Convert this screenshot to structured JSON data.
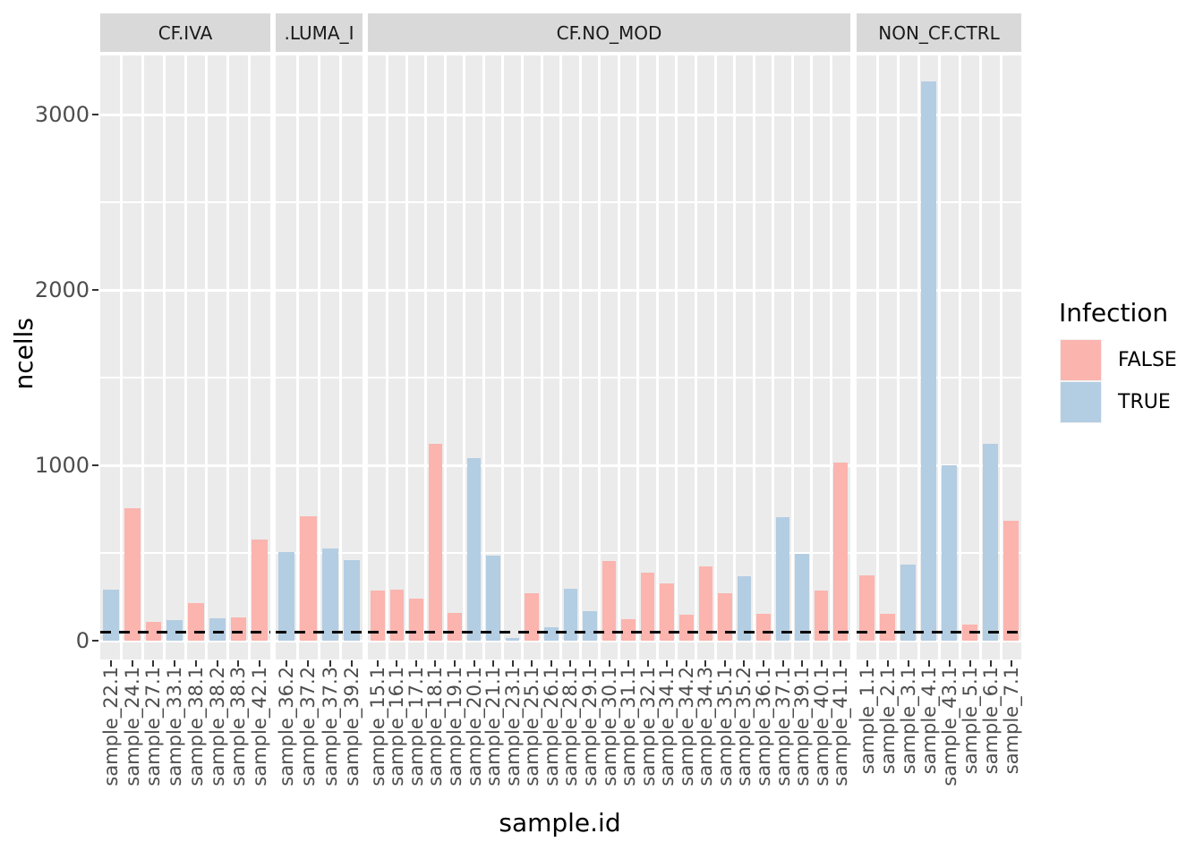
{
  "chart_data": {
    "type": "bar",
    "ylabel": "ncells",
    "xlabel": "sample.id",
    "y_ticks": [
      0,
      1000,
      2000,
      3000
    ],
    "y_minor_gridlines": [
      500,
      1500,
      2500
    ],
    "ylim": [
      -110,
      3340
    ],
    "threshold_line": 50,
    "grid": "on",
    "legend": {
      "title": "Infection",
      "position": "right",
      "entries": [
        {
          "label": "FALSE",
          "color": "#FBB4AE"
        },
        {
          "label": "TRUE",
          "color": "#B3CDE3"
        }
      ]
    },
    "colors": {
      "panel_bg": "#EBEBEB",
      "strip_bg": "#D9D9D9",
      "gridline": "#FFFFFF",
      "tick_text": "#4D4D4D",
      "threshold": "#000000"
    },
    "facets": [
      {
        "label": "CF.IVA",
        "bars": [
          {
            "id": "sample_22.1",
            "infection": "TRUE",
            "ncells": 290
          },
          {
            "id": "sample_24.1",
            "infection": "FALSE",
            "ncells": 755
          },
          {
            "id": "sample_27.1",
            "infection": "FALSE",
            "ncells": 105
          },
          {
            "id": "sample_33.1",
            "infection": "TRUE",
            "ncells": 115
          },
          {
            "id": "sample_38.1",
            "infection": "FALSE",
            "ncells": 215
          },
          {
            "id": "sample_38.2",
            "infection": "TRUE",
            "ncells": 130
          },
          {
            "id": "sample_38.3",
            "infection": "FALSE",
            "ncells": 135
          },
          {
            "id": "sample_42.1",
            "infection": "FALSE",
            "ncells": 575
          }
        ]
      },
      {
        "label": ".LUMA_I",
        "bars": [
          {
            "id": "sample_36.2",
            "infection": "TRUE",
            "ncells": 505
          },
          {
            "id": "sample_37.2",
            "infection": "FALSE",
            "ncells": 710
          },
          {
            "id": "sample_37.3",
            "infection": "TRUE",
            "ncells": 525
          },
          {
            "id": "sample_39.2",
            "infection": "TRUE",
            "ncells": 460
          }
        ]
      },
      {
        "label": "CF.NO_MOD",
        "bars": [
          {
            "id": "sample_15.1",
            "infection": "FALSE",
            "ncells": 285
          },
          {
            "id": "sample_16.1",
            "infection": "FALSE",
            "ncells": 290
          },
          {
            "id": "sample_17.1",
            "infection": "FALSE",
            "ncells": 240
          },
          {
            "id": "sample_18.1",
            "infection": "FALSE",
            "ncells": 1120
          },
          {
            "id": "sample_19.1",
            "infection": "FALSE",
            "ncells": 160
          },
          {
            "id": "sample_20.1",
            "infection": "TRUE",
            "ncells": 1040
          },
          {
            "id": "sample_21.1",
            "infection": "TRUE",
            "ncells": 485
          },
          {
            "id": "sample_23.1",
            "infection": "TRUE",
            "ncells": 15
          },
          {
            "id": "sample_25.1",
            "infection": "FALSE",
            "ncells": 270
          },
          {
            "id": "sample_26.1",
            "infection": "TRUE",
            "ncells": 75
          },
          {
            "id": "sample_28.1",
            "infection": "TRUE",
            "ncells": 295
          },
          {
            "id": "sample_29.1",
            "infection": "TRUE",
            "ncells": 170
          },
          {
            "id": "sample_30.1",
            "infection": "FALSE",
            "ncells": 455
          },
          {
            "id": "sample_31.1",
            "infection": "FALSE",
            "ncells": 120
          },
          {
            "id": "sample_32.1",
            "infection": "FALSE",
            "ncells": 390
          },
          {
            "id": "sample_34.1",
            "infection": "FALSE",
            "ncells": 325
          },
          {
            "id": "sample_34.2",
            "infection": "FALSE",
            "ncells": 150
          },
          {
            "id": "sample_34.3",
            "infection": "FALSE",
            "ncells": 425
          },
          {
            "id": "sample_35.1",
            "infection": "FALSE",
            "ncells": 270
          },
          {
            "id": "sample_35.2",
            "infection": "TRUE",
            "ncells": 365
          },
          {
            "id": "sample_36.1",
            "infection": "FALSE",
            "ncells": 155
          },
          {
            "id": "sample_37.1",
            "infection": "TRUE",
            "ncells": 705
          },
          {
            "id": "sample_39.1",
            "infection": "TRUE",
            "ncells": 495
          },
          {
            "id": "sample_40.1",
            "infection": "FALSE",
            "ncells": 285
          },
          {
            "id": "sample_41.1",
            "infection": "FALSE",
            "ncells": 1015
          }
        ]
      },
      {
        "label": "NON_CF.CTRL",
        "bars": [
          {
            "id": "sample_1.1",
            "infection": "FALSE",
            "ncells": 375
          },
          {
            "id": "sample_2.1",
            "infection": "FALSE",
            "ncells": 155
          },
          {
            "id": "sample_3.1",
            "infection": "TRUE",
            "ncells": 435
          },
          {
            "id": "sample_4.1",
            "infection": "TRUE",
            "ncells": 3190
          },
          {
            "id": "sample_43.1",
            "infection": "TRUE",
            "ncells": 1000
          },
          {
            "id": "sample_5.1",
            "infection": "FALSE",
            "ncells": 90
          },
          {
            "id": "sample_6.1",
            "infection": "TRUE",
            "ncells": 1125
          },
          {
            "id": "sample_7.1",
            "infection": "FALSE",
            "ncells": 685
          }
        ]
      }
    ]
  }
}
